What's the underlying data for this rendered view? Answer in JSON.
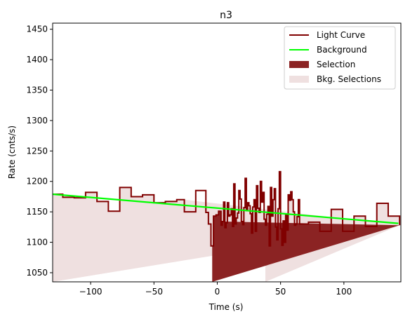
{
  "chart_data": {
    "type": "line",
    "title": "n3",
    "xlabel": "Time (s)",
    "ylabel": "Rate (cnts/s)",
    "xlim": [
      -130,
      145
    ],
    "ylim": [
      1035,
      1460
    ],
    "xticks": [
      -100,
      -50,
      0,
      50,
      100
    ],
    "yticks": [
      1050,
      1100,
      1150,
      1200,
      1250,
      1300,
      1350,
      1400,
      1450
    ],
    "legend_position": "top-right",
    "colors": {
      "light_curve": "#800000",
      "background": "#00ff00",
      "selection": "#8b2323",
      "bkg_selection": "#efe0e0"
    },
    "legend": [
      {
        "label": "Light Curve",
        "kind": "line",
        "color": "#800000"
      },
      {
        "label": "Background",
        "kind": "line",
        "color": "#00ff00"
      },
      {
        "label": "Selection",
        "kind": "patch",
        "color": "#8b2323"
      },
      {
        "label": "Bkg. Selections",
        "kind": "patch",
        "color": "#efe0e0"
      }
    ],
    "light_curve": {
      "name": "Light Curve",
      "edges": [
        -130,
        -122,
        -113,
        -104,
        -95,
        -86,
        -77,
        -68,
        -59,
        -50,
        -41,
        -32,
        -26,
        -17,
        -9,
        -7,
        -5,
        -3,
        -1,
        1,
        3,
        4,
        5,
        6,
        7,
        8,
        9,
        10,
        11,
        12,
        13,
        14,
        15,
        16,
        17,
        18,
        19,
        20,
        21,
        22,
        23,
        24,
        25,
        26,
        27,
        28,
        29,
        30,
        31,
        32,
        33,
        34,
        35,
        36,
        37,
        38,
        39,
        40,
        41,
        42,
        43,
        44,
        45,
        46,
        47,
        48,
        49,
        50,
        51,
        52,
        53,
        54,
        55,
        56,
        57,
        58,
        59,
        60,
        61,
        62,
        63,
        64,
        65,
        72,
        81,
        90,
        99,
        108,
        117,
        126,
        135,
        144
      ],
      "values": [
        1179,
        1174,
        1173,
        1182,
        1167,
        1151,
        1190,
        1175,
        1178,
        1165,
        1167,
        1170,
        1150,
        1185,
        1149,
        1130,
        1094,
        1143,
        1145,
        1151,
        1128,
        1134,
        1166,
        1124,
        1132,
        1165,
        1143,
        1145,
        1155,
        1126,
        1196,
        1130,
        1140,
        1148,
        1185,
        1171,
        1134,
        1129,
        1157,
        1205,
        1152,
        1165,
        1160,
        1147,
        1115,
        1158,
        1170,
        1118,
        1193,
        1156,
        1149,
        1200,
        1166,
        1182,
        1138,
        1128,
        1146,
        1159,
        1094,
        1190,
        1143,
        1170,
        1188,
        1125,
        1104,
        1155,
        1216,
        1122,
        1095,
        1135,
        1100,
        1145,
        1120,
        1178,
        1169,
        1183,
        1170,
        1150,
        1128,
        1130,
        1142,
        1170,
        1130,
        1133,
        1118,
        1154,
        1118,
        1143,
        1126,
        1164,
        1143,
        1128
      ]
    },
    "background": {
      "name": "Background",
      "x": [
        -130,
        143
      ],
      "y": [
        1179,
        1131
      ]
    },
    "selection": {
      "name": "Selection",
      "x_range": [
        -4,
        5
      ]
    },
    "bkg_selections": {
      "name": "Bkg. Selections",
      "ranges": [
        [
          -130,
          -26
        ],
        [
          38,
          145
        ]
      ]
    }
  }
}
